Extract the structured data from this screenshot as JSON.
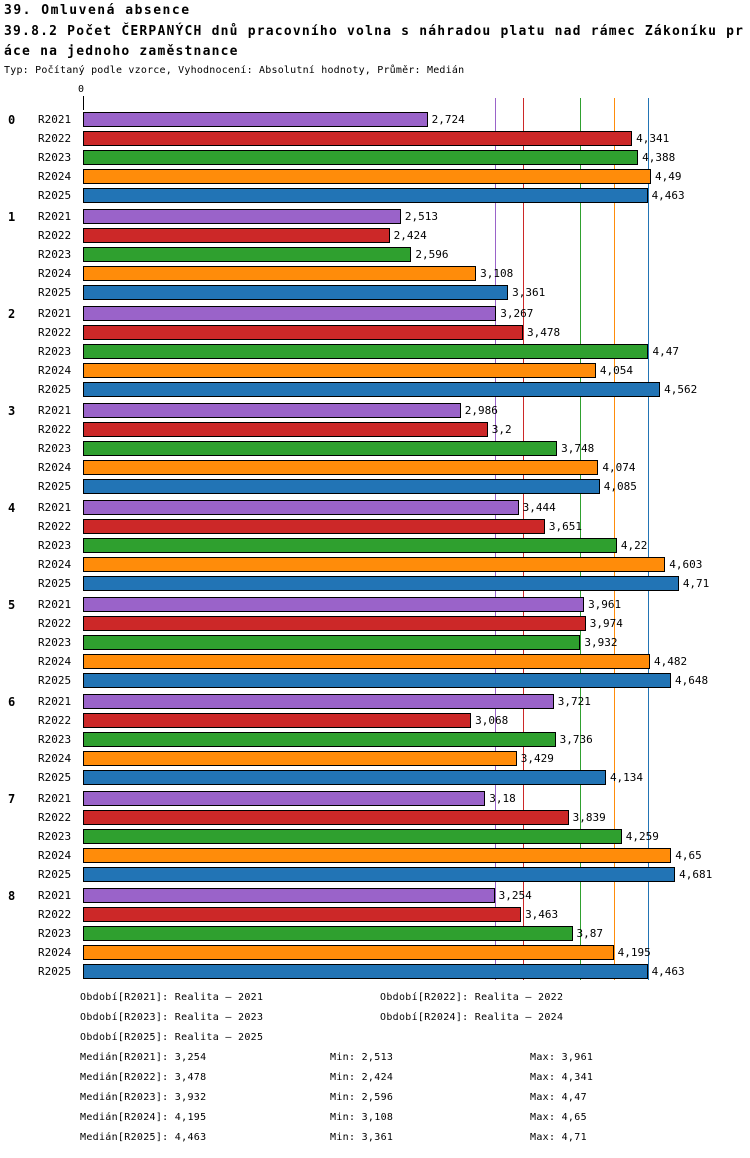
{
  "chart_data": {
    "type": "bar",
    "orientation": "horizontal",
    "title": "39. Omluvená absence",
    "subtitle": "39.8.2 Počet ČERPANÝCH dnů pracovního volna s náhradou platu nad rámec Zákoníku práce na jednoho zaměstnance",
    "meta": "Typ: Počítaný podle vzorce, Vyhodnocení: Absolutní hodnoty, Průměr: Medián",
    "x_axis": {
      "origin_label": "0",
      "min": 0,
      "max_shown_value": 4.71
    },
    "grid": "median-reference-lines",
    "legend_position": "bottom",
    "categories": [
      "0",
      "1",
      "2",
      "3",
      "4",
      "5",
      "6",
      "7",
      "8"
    ],
    "series": [
      {
        "name": "R2021",
        "color": "#9a63c9",
        "median": 3.254
      },
      {
        "name": "R2022",
        "color": "#cc2828",
        "median": 3.478
      },
      {
        "name": "R2023",
        "color": "#2fa02f",
        "median": 3.932
      },
      {
        "name": "R2024",
        "color": "#ff8c0a",
        "median": 4.195
      },
      {
        "name": "R2025",
        "color": "#2274b5",
        "median": 4.463
      }
    ],
    "values": [
      [
        2.724,
        4.341,
        4.388,
        4.49,
        4.463
      ],
      [
        2.513,
        2.424,
        2.596,
        3.108,
        3.361
      ],
      [
        3.267,
        3.478,
        4.47,
        4.054,
        4.562
      ],
      [
        2.986,
        3.2,
        3.748,
        4.074,
        4.085
      ],
      [
        3.444,
        3.651,
        4.22,
        4.603,
        4.71
      ],
      [
        3.961,
        3.974,
        3.932,
        4.482,
        4.648
      ],
      [
        3.721,
        3.068,
        3.736,
        3.429,
        4.134
      ],
      [
        3.18,
        3.839,
        4.259,
        4.65,
        4.681
      ],
      [
        3.254,
        3.463,
        3.87,
        4.195,
        4.463
      ]
    ],
    "value_labels": [
      [
        "2,724",
        "4,341",
        "4,388",
        "4,49",
        "4,463"
      ],
      [
        "2,513",
        "2,424",
        "2,596",
        "3,108",
        "3,361"
      ],
      [
        "3,267",
        "3,478",
        "4,47",
        "4,054",
        "4,562"
      ],
      [
        "2,986",
        "3,2",
        "3,748",
        "4,074",
        "4,085"
      ],
      [
        "3,444",
        "3,651",
        "4,22",
        "4,603",
        "4,71"
      ],
      [
        "3,961",
        "3,974",
        "3,932",
        "4,482",
        "4,648"
      ],
      [
        "3,721",
        "3,068",
        "3,736",
        "3,429",
        "4,134"
      ],
      [
        "3,18",
        "3,839",
        "4,259",
        "4,65",
        "4,681"
      ],
      [
        "3,254",
        "3,463",
        "3,87",
        "4,195",
        "4,463"
      ]
    ]
  },
  "legend": {
    "items": [
      {
        "label": "Období[R2021]: Realita – 2021"
      },
      {
        "label": "Období[R2022]: Realita – 2022"
      },
      {
        "label": "Období[R2023]: Realita – 2023"
      },
      {
        "label": "Období[R2024]: Realita – 2024"
      },
      {
        "label": "Období[R2025]: Realita – 2025"
      }
    ]
  },
  "stats": [
    {
      "median": "Medián[R2021]: 3,254",
      "min": "Min: 2,513",
      "max": "Max: 3,961"
    },
    {
      "median": "Medián[R2022]: 3,478",
      "min": "Min: 2,424",
      "max": "Max: 4,341"
    },
    {
      "median": "Medián[R2023]: 3,932",
      "min": "Min: 2,596",
      "max": "Max: 4,47"
    },
    {
      "median": "Medián[R2024]: 4,195",
      "min": "Min: 3,108",
      "max": "Max: 4,65"
    },
    {
      "median": "Medián[R2025]: 4,463",
      "min": "Min: 3,361",
      "max": "Max: 4,71"
    }
  ]
}
